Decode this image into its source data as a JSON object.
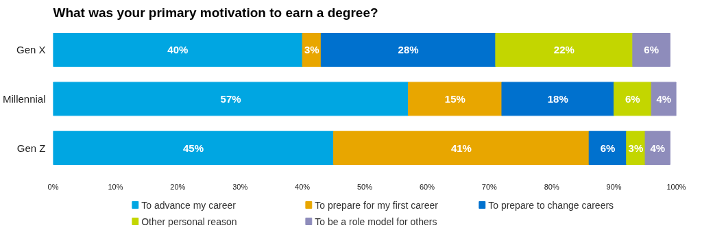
{
  "chart_data": {
    "type": "bar",
    "orientation": "horizontal",
    "stacked": true,
    "title": "What was your primary motivation to earn a degree?",
    "categories": [
      "Gen X",
      "Millennial",
      "Gen Z"
    ],
    "series": [
      {
        "name": "To advance my career",
        "color": "#00a6e2",
        "values": [
          40,
          57,
          45
        ],
        "value_labels": [
          "40%",
          "57%",
          "45%"
        ]
      },
      {
        "name": "To prepare for my first career",
        "color": "#e8a600",
        "values": [
          3,
          15,
          41
        ],
        "value_labels": [
          "3%",
          "15%",
          "41%"
        ]
      },
      {
        "name": "To prepare to change careers",
        "color": "#0071ce",
        "values": [
          28,
          18,
          6
        ],
        "value_labels": [
          "28%",
          "18%",
          "6%"
        ]
      },
      {
        "name": "Other personal reason",
        "color": "#c3d600",
        "values": [
          22,
          6,
          3
        ],
        "value_labels": [
          "22%",
          "6%",
          "3%"
        ]
      },
      {
        "name": "To be a role model for others",
        "color": "#8e8cbb",
        "values": [
          6,
          4,
          4
        ],
        "value_labels": [
          "6%",
          "4%",
          "4%"
        ]
      }
    ],
    "xlim": [
      0,
      100
    ],
    "xticks": [
      {
        "value": 0,
        "label": "0%"
      },
      {
        "value": 10,
        "label": "10%"
      },
      {
        "value": 20,
        "label": "20%"
      },
      {
        "value": 30,
        "label": "30%"
      },
      {
        "value": 40,
        "label": "40%"
      },
      {
        "value": 50,
        "label": "50%"
      },
      {
        "value": 60,
        "label": "60%"
      },
      {
        "value": 70,
        "label": "70%"
      },
      {
        "value": 80,
        "label": "80%"
      },
      {
        "value": 90,
        "label": "90%"
      },
      {
        "value": 100,
        "label": "100%"
      }
    ],
    "grid": false,
    "legend": "bottom"
  }
}
